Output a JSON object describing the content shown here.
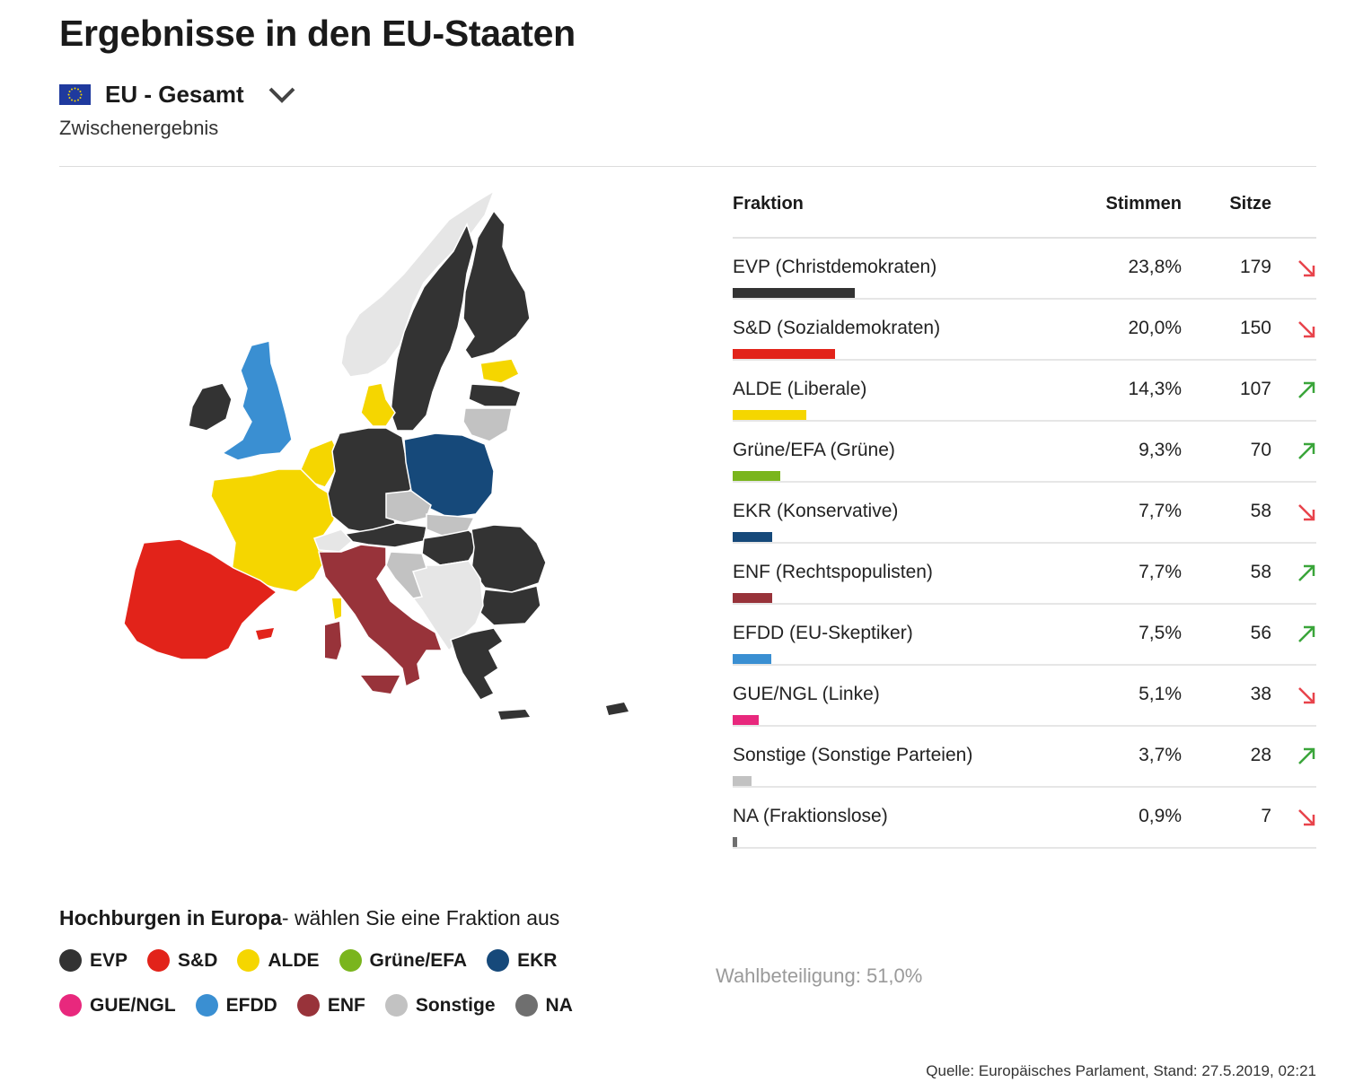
{
  "title": "Ergebnisse in den EU-Staaten",
  "selector": {
    "label": "EU - Gesamt",
    "flag_icon": "eu-flag-icon",
    "chevron_icon": "chevron-down-icon"
  },
  "subtitle": "Zwischenergebnis",
  "table": {
    "headers": {
      "fraktion": "Fraktion",
      "stimmen": "Stimmen",
      "sitze": "Sitze"
    },
    "rows": [
      {
        "name": "EVP (Christdemokraten)",
        "pct": "23,8%",
        "pct_value": 23.8,
        "seats": "179",
        "trend": "down",
        "color": "#333333"
      },
      {
        "name": "S&D (Sozialdemokraten)",
        "pct": "20,0%",
        "pct_value": 20.0,
        "seats": "150",
        "trend": "down",
        "color": "#e2231a"
      },
      {
        "name": "ALDE (Liberale)",
        "pct": "14,3%",
        "pct_value": 14.3,
        "seats": "107",
        "trend": "up",
        "color": "#f5d600"
      },
      {
        "name": "Grüne/EFA (Grüne)",
        "pct": "9,3%",
        "pct_value": 9.3,
        "seats": "70",
        "trend": "up",
        "color": "#7ab51d"
      },
      {
        "name": "EKR (Konservative)",
        "pct": "7,7%",
        "pct_value": 7.7,
        "seats": "58",
        "trend": "down",
        "color": "#16497a"
      },
      {
        "name": "ENF (Rechtspopulisten)",
        "pct": "7,7%",
        "pct_value": 7.7,
        "seats": "58",
        "trend": "up",
        "color": "#98333a"
      },
      {
        "name": "EFDD (EU-Skeptiker)",
        "pct": "7,5%",
        "pct_value": 7.5,
        "seats": "56",
        "trend": "up",
        "color": "#3a8fd2"
      },
      {
        "name": "GUE/NGL (Linke)",
        "pct": "5,1%",
        "pct_value": 5.1,
        "seats": "38",
        "trend": "down",
        "color": "#e8287d"
      },
      {
        "name": "Sonstige (Sonstige Parteien)",
        "pct": "3,7%",
        "pct_value": 3.7,
        "seats": "28",
        "trend": "up",
        "color": "#c2c2c2"
      },
      {
        "name": "NA (Fraktionslose)",
        "pct": "0,9%",
        "pct_value": 0.9,
        "seats": "7",
        "trend": "down",
        "color": "#6f6f6f"
      }
    ]
  },
  "trend_colors": {
    "up": "#3aa53a",
    "down": "#e8434b"
  },
  "hochburgen": {
    "bold": "Hochburgen in Europa",
    "rest": "- wählen Sie eine Fraktion aus"
  },
  "legend": [
    {
      "label": "EVP",
      "color": "#333333"
    },
    {
      "label": "S&D",
      "color": "#e2231a"
    },
    {
      "label": "ALDE",
      "color": "#f5d600"
    },
    {
      "label": "Grüne/EFA",
      "color": "#7ab51d"
    },
    {
      "label": "EKR",
      "color": "#16497a"
    },
    {
      "label": "GUE/NGL",
      "color": "#e8287d"
    },
    {
      "label": "EFDD",
      "color": "#3a8fd2"
    },
    {
      "label": "ENF",
      "color": "#98333a"
    },
    {
      "label": "Sonstige",
      "color": "#c2c2c2"
    },
    {
      "label": "NA",
      "color": "#6f6f6f"
    }
  ],
  "turnout": "Wahlbeteiligung: 51,0%",
  "source": "Quelle: Europäisches Parlament, Stand: 27.5.2019, 02:21"
}
